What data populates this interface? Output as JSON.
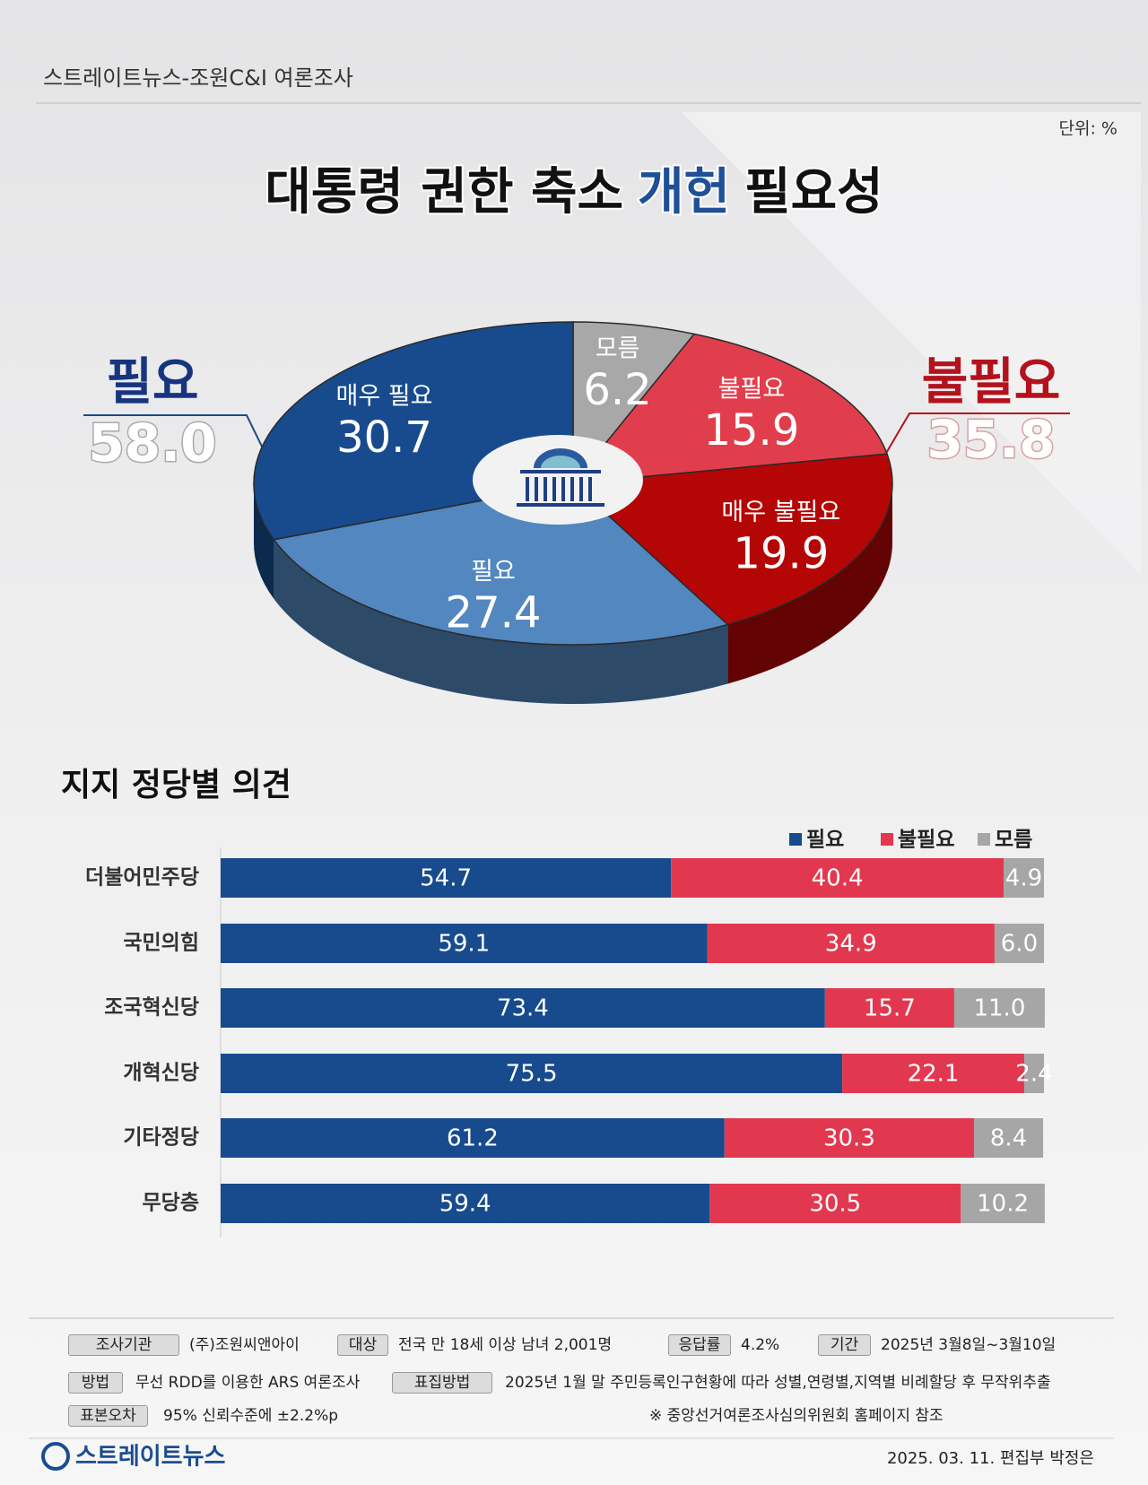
{
  "header": {
    "source_title": "스트레이트뉴스-조원C&I 여론조사",
    "unit": "단위: %"
  },
  "chart_data": [
    {
      "type": "pie",
      "title": [
        "대통령 권한 축소",
        "개헌",
        "필요성"
      ],
      "categories": [
        "모름",
        "불필요",
        "매우 불필요",
        "필요",
        "매우 필요"
      ],
      "values": [
        6.2,
        15.9,
        19.9,
        27.4,
        30.7
      ],
      "colors": [
        "#a8a8a8",
        "#e03e4c",
        "#b50606",
        "#5287c0",
        "#174b8e"
      ],
      "groups": [
        {
          "name": "필요",
          "value": 58,
          "value_label": "58.0",
          "color": "#17357f"
        },
        {
          "name": "불필요",
          "value": 35.8,
          "color": "#b3121c"
        }
      ]
    },
    {
      "type": "bar",
      "orientation": "horizontal",
      "stacked": true,
      "title": "지지 정당별 의견",
      "categories": [
        "더불어민주당",
        "국민의힘",
        "조국혁신당",
        "개혁신당",
        "기타정당",
        "무당층"
      ],
      "xlim": [
        0,
        100
      ],
      "series": [
        {
          "name": "필요",
          "color": "#174b8e",
          "values": [
            54.7,
            59.1,
            73.4,
            75.5,
            61.2,
            59.4
          ]
        },
        {
          "name": "불필요",
          "color": "#e2384f",
          "values": [
            40.4,
            34.9,
            15.7,
            22.1,
            30.3,
            30.5
          ]
        },
        {
          "name": "모름",
          "color": "#a6a6a6",
          "values": [
            4.9,
            6.0,
            11.0,
            2.4,
            8.4,
            10.2
          ],
          "value_labels": [
            "4.9",
            "6.0",
            "11.0",
            "2.4",
            "8.4",
            "10.2"
          ]
        }
      ]
    }
  ],
  "footer": {
    "items": [
      {
        "label": "조사기관",
        "value": "(주)조원씨앤아이"
      },
      {
        "label": "대상",
        "value": "전국 만 18세 이상 남녀 2,001명"
      },
      {
        "label": "응답률",
        "value": "4.2%"
      },
      {
        "label": "기간",
        "value": "2025년 3월8일~3월10일"
      },
      {
        "label": "방법",
        "value": "무선 RDD를 이용한 ARS 여론조사"
      },
      {
        "label": "표집방법",
        "value": "2025년 1월 말 주민등록인구현황에 따라 성별,연령별,지역별 비례할당 후 무작위추출"
      },
      {
        "label": "표본오차",
        "value": "95% 신뢰수준에 ±2.2%p"
      }
    ],
    "note": "※ 중앙선거여론조사심의위원회 홈페이지 참조",
    "logo": "스트레이트뉴스",
    "byline": "2025. 03. 11. 편집부 박정은"
  }
}
